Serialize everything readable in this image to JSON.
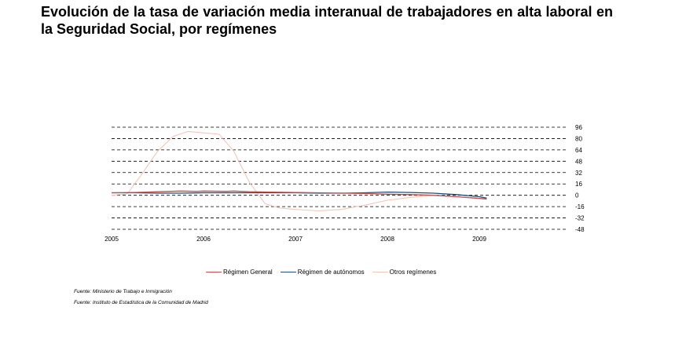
{
  "title": "Evolución de la tasa de variación media interanual de trabajadores en alta laboral en la Seguridad Social, por  regímenes",
  "sources": [
    "Fuente: Ministerio de Trabajo e Inmigración",
    "Fuente: Instituto de Estadística de la Comunidad de Madrid"
  ],
  "colors": {
    "general": "#c0504d",
    "autonomos": "#1f4e79",
    "otros": "#f2c6b8",
    "grid": "#000000"
  },
  "chart_data": {
    "type": "line",
    "title": "",
    "xlabel": "",
    "ylabel": "",
    "x_ticks": [
      "2005",
      "2006",
      "2007",
      "2008",
      "2009"
    ],
    "x_range": [
      2005,
      2010.0
    ],
    "y_ticks": [
      96,
      80,
      64,
      48,
      32,
      16,
      0,
      -16,
      -32,
      -48
    ],
    "ylim": [
      -48,
      96
    ],
    "grid": "horizontal-dashed",
    "legend_position": "bottom",
    "series": [
      {
        "name": "Régimen General",
        "key": "general",
        "x": [
          2005.0,
          2005.25,
          2005.5,
          2005.75,
          2005.92,
          2006.0,
          2006.25,
          2006.33,
          2006.5,
          2006.75,
          2007.0,
          2007.25,
          2007.5,
          2007.75,
          2008.0,
          2008.25,
          2008.5,
          2008.75,
          2009.0,
          2009.08
        ],
        "values": [
          3.5,
          4.0,
          5.0,
          6.0,
          5.5,
          6.0,
          5.5,
          6.0,
          5.0,
          4.5,
          4.0,
          3.5,
          3.0,
          2.5,
          1.5,
          1.0,
          0.0,
          -2.0,
          -4.5,
          -5.5
        ]
      },
      {
        "name": "Régimen de autónomos",
        "key": "autonomos",
        "x": [
          2005.0,
          2005.25,
          2005.5,
          2005.75,
          2006.0,
          2006.25,
          2006.5,
          2006.75,
          2007.0,
          2007.25,
          2007.5,
          2007.75,
          2008.0,
          2008.25,
          2008.5,
          2008.75,
          2009.0,
          2009.08
        ],
        "values": [
          3.5,
          3.5,
          3.0,
          3.0,
          3.5,
          3.5,
          3.5,
          3.5,
          3.5,
          3.0,
          3.0,
          3.5,
          4.5,
          4.0,
          3.0,
          1.0,
          -2.0,
          -4.0
        ]
      },
      {
        "name": "Otros regímenes",
        "key": "otros",
        "x": [
          2005.0,
          2005.17,
          2005.33,
          2005.5,
          2005.67,
          2005.83,
          2006.0,
          2006.17,
          2006.33,
          2006.5,
          2006.67,
          2006.83,
          2007.0,
          2007.25,
          2007.5,
          2007.75,
          2008.0,
          2008.25,
          2008.5,
          2008.75,
          2009.0,
          2009.08
        ],
        "values": [
          0,
          2,
          30,
          62,
          83,
          90,
          88,
          86,
          62,
          18,
          -12,
          -18,
          -20,
          -22,
          -20,
          -14,
          -7,
          -3,
          0,
          -2,
          -4,
          -5
        ]
      }
    ]
  }
}
